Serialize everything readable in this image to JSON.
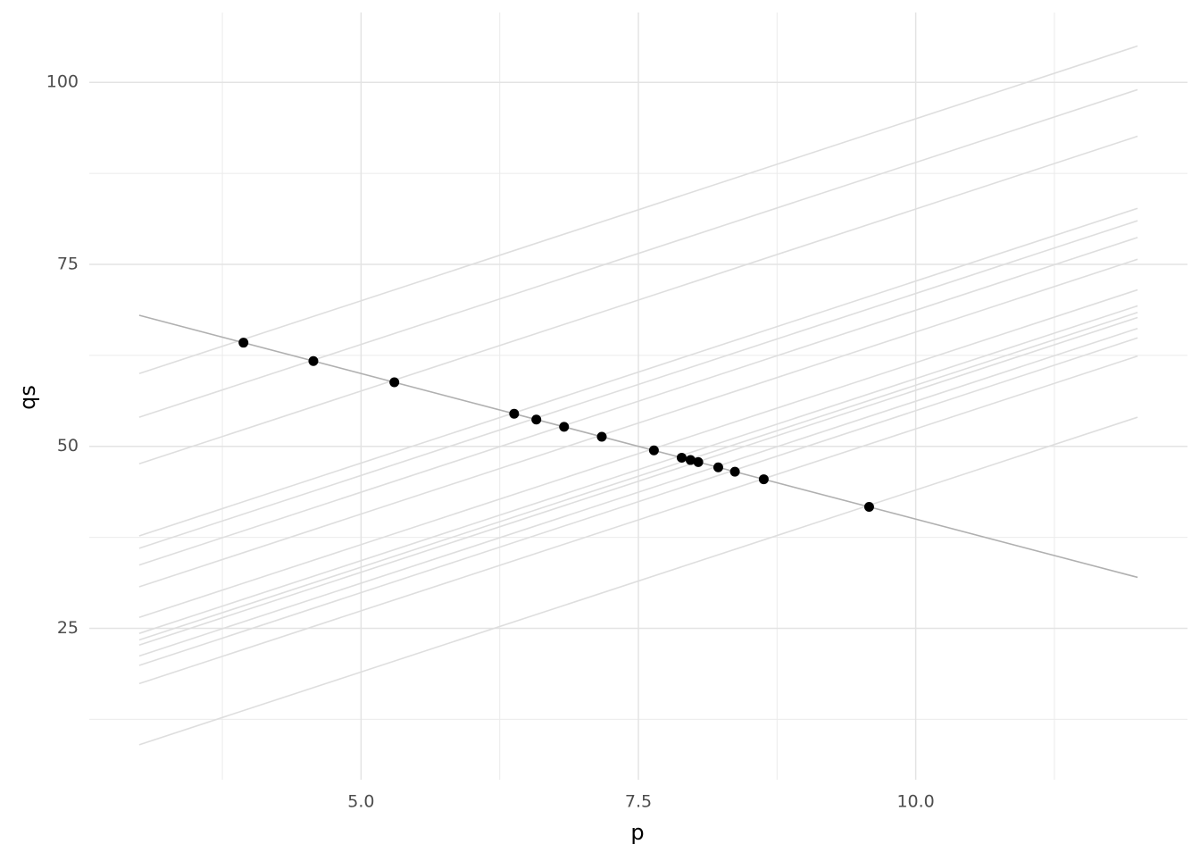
{
  "chart_data": {
    "type": "line",
    "x_label": "p",
    "y_label": "qs",
    "xlim": [
      2.55,
      12.45
    ],
    "ylim": [
      4.2,
      109.6
    ],
    "xticks": [
      {
        "value": 5,
        "label": "5.0"
      },
      7.5,
      {
        "value": 10,
        "label": "10.0"
      }
    ],
    "yticks": [
      25,
      50,
      75,
      100
    ],
    "xminorticks": [
      3.75,
      6.25,
      8.75,
      11.25
    ],
    "yminorticks": [
      12.5,
      37.5,
      62.5,
      87.5
    ],
    "grid": true,
    "supply_color": "#dedede",
    "supply": [
      {
        "x": [
          3,
          12
        ],
        "values": [
          60.0,
          105.0
        ]
      },
      {
        "x": [
          3,
          12
        ],
        "values": [
          54.0,
          99.0
        ]
      },
      {
        "x": [
          3,
          12
        ],
        "values": [
          47.6,
          92.6
        ]
      },
      {
        "x": [
          3,
          12
        ],
        "values": [
          37.7,
          82.7
        ]
      },
      {
        "x": [
          3,
          12
        ],
        "values": [
          36.0,
          81.0
        ]
      },
      {
        "x": [
          3,
          12
        ],
        "values": [
          33.7,
          78.7
        ]
      },
      {
        "x": [
          3,
          12
        ],
        "values": [
          30.7,
          75.7
        ]
      },
      {
        "x": [
          3,
          12
        ],
        "values": [
          26.5,
          71.5
        ]
      },
      {
        "x": [
          3,
          12
        ],
        "values": [
          24.3,
          69.3
        ]
      },
      {
        "x": [
          3,
          12
        ],
        "values": [
          23.4,
          68.4
        ]
      },
      {
        "x": [
          3,
          12
        ],
        "values": [
          22.7,
          67.7
        ]
      },
      {
        "x": [
          3,
          12
        ],
        "values": [
          21.2,
          66.2
        ]
      },
      {
        "x": [
          3,
          12
        ],
        "values": [
          19.9,
          64.9
        ]
      },
      {
        "x": [
          3,
          12
        ],
        "values": [
          17.4,
          62.4
        ]
      },
      {
        "x": [
          3,
          12
        ],
        "values": [
          9.0,
          54.0
        ]
      }
    ],
    "demand": {
      "color": "#b0b0b0",
      "x": [
        3,
        12
      ],
      "values": [
        68,
        32
      ]
    },
    "points": {
      "color": "#000000",
      "x": [
        3.94,
        4.57,
        5.3,
        6.38,
        6.58,
        6.83,
        7.17,
        7.64,
        7.89,
        7.97,
        8.04,
        8.22,
        8.37,
        8.63,
        9.58
      ],
      "values": [
        64.24,
        61.72,
        58.8,
        54.48,
        53.68,
        52.68,
        51.32,
        49.44,
        48.44,
        48.12,
        47.84,
        47.12,
        46.52,
        45.48,
        41.68
      ]
    }
  }
}
